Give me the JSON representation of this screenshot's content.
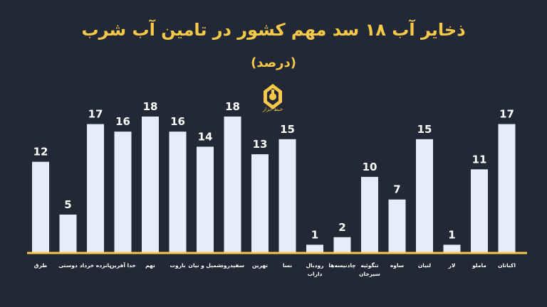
{
  "header": {
    "title": "ذخایر آب ۱۸ سد مهم کشور در تامین آب شرب",
    "subtitle": "(درصد)",
    "logo_text": "خبط ابزار"
  },
  "colors": {
    "background": "#222835",
    "bar": "#E4EEFB",
    "accent": "#F7C948",
    "text": "#FFFFFF"
  },
  "chart_data": {
    "type": "bar",
    "title": "ذخایر آب ۱۸ سد مهم کشور در تامین آب شرب",
    "subtitle": "(درصد)",
    "xlabel": "",
    "ylabel": "",
    "grid": false,
    "categories": [
      "طرق",
      "دوستی",
      "پانزده خرداد",
      "خدا آفرین",
      "تهم",
      "باروت",
      "شمیل و نیان",
      "سفیدرود",
      "تهرین",
      "نسا",
      "رودبال داراب",
      "چادنیسه‌ها",
      "تنگوئیه سیرجان",
      "ساوه",
      "لتیان",
      "لار",
      "ماملو",
      "اکباتان"
    ],
    "values": [
      12,
      5,
      17,
      16,
      18,
      16,
      14,
      18,
      13,
      15,
      1,
      2,
      10,
      7,
      15,
      1,
      11,
      17
    ],
    "ylim": [
      0,
      18
    ]
  }
}
